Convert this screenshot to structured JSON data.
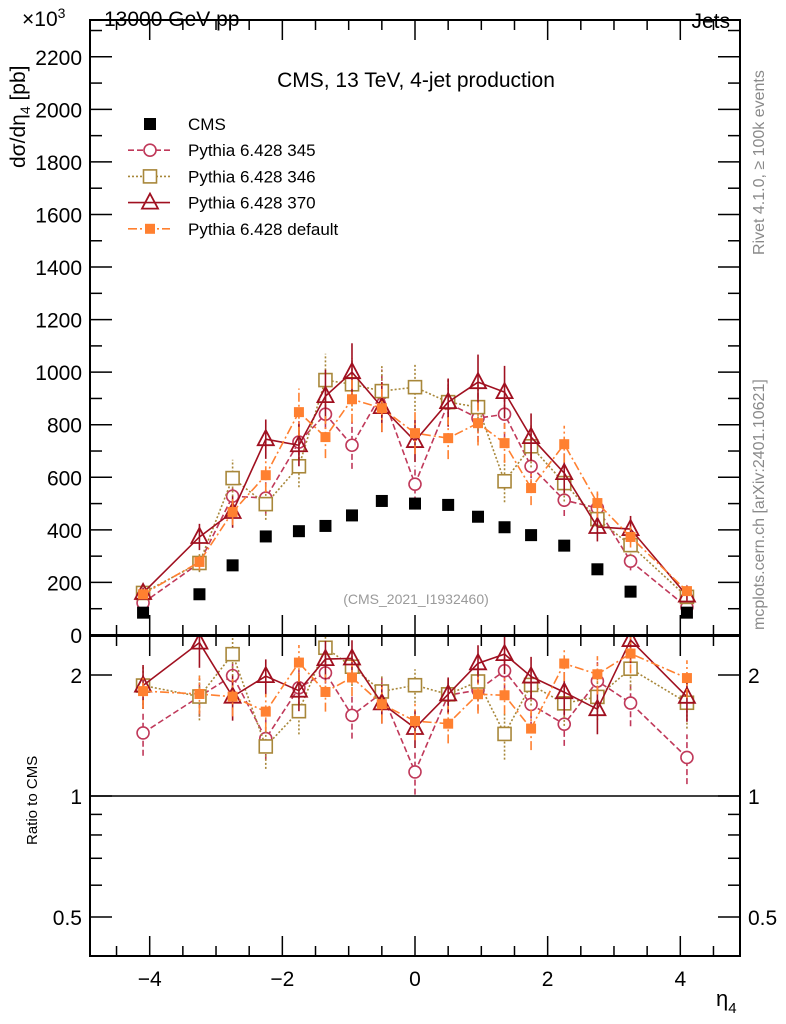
{
  "header": {
    "energy_label": "13000 GeV pp",
    "multiplier_label": "×10",
    "multiplier_exp": "3",
    "category_label": "Jets",
    "rivet_label": "Rivet 4.1.0, ≥ 100k events",
    "mcplots_label": "mcplots.cern.ch [arXiv:2401.10621]",
    "analysis_label": "(CMS_2021_I1932460)"
  },
  "chart_data": [
    {
      "type": "scatter",
      "title": "CMS, 13 TeV, 4-jet production",
      "ylabel": "dσ/dη",
      "ylabel_sub": "4",
      "ylabel_unit": " [pb]",
      "xlim": [
        -4.9,
        4.9
      ],
      "ylim": [
        0,
        2340
      ],
      "yticks": [
        0,
        200,
        400,
        600,
        800,
        1000,
        1200,
        1400,
        1600,
        1800,
        2000,
        2200
      ],
      "ytick_labels": [
        "0",
        "200",
        "400",
        "600",
        "800",
        "1000",
        "1200",
        "1400",
        "1600",
        "1800",
        "2000",
        "2200"
      ],
      "legend_position": "top-left",
      "x": [
        -4.1,
        -3.25,
        -2.75,
        -2.25,
        -1.75,
        -1.35,
        -0.95,
        -0.5,
        0,
        0.5,
        0.95,
        1.35,
        1.75,
        2.25,
        2.75,
        3.25,
        4.1
      ],
      "series": [
        {
          "name": "CMS",
          "color": "#000000",
          "marker": "filled-square",
          "line": "none",
          "values": [
            85,
            155,
            265,
            375,
            395,
            415,
            455,
            510,
            500,
            495,
            450,
            410,
            380,
            340,
            250,
            165,
            85
          ],
          "err": [
            0,
            0,
            0,
            0,
            0,
            0,
            0,
            0,
            0,
            0,
            0,
            0,
            0,
            0,
            0,
            0,
            0
          ]
        },
        {
          "name": "Pythia 6.428 345",
          "color": "#c0395a",
          "marker": "open-circle",
          "line": "dashed",
          "values": [
            122,
            274,
            528,
            521,
            734,
            840,
            722,
            920,
            574,
            882,
            825,
            840,
            642,
            513,
            483,
            281,
            106
          ],
          "err": [
            15,
            30,
            60,
            60,
            80,
            90,
            90,
            90,
            70,
            90,
            90,
            90,
            80,
            60,
            55,
            35,
            15
          ]
        },
        {
          "name": "Pythia 6.428 346",
          "color": "#a8873a",
          "marker": "open-square",
          "line": "dotted",
          "values": [
            160,
            274,
            597,
            498,
            642,
            970,
            954,
            928,
            943,
            886,
            867,
            585,
            718,
            578,
            441,
            342,
            145
          ],
          "err": [
            20,
            35,
            70,
            60,
            80,
            100,
            100,
            95,
            90,
            90,
            90,
            80,
            80,
            70,
            55,
            40,
            20
          ]
        },
        {
          "name": "Pythia 6.428 370",
          "color": "#a01020",
          "marker": "open-triangle",
          "line": "solid",
          "values": [
            160,
            373,
            468,
            745,
            722,
            909,
            1000,
            867,
            738,
            886,
            962,
            924,
            753,
            616,
            411,
            403,
            150
          ],
          "err": [
            20,
            50,
            60,
            75,
            80,
            100,
            110,
            95,
            80,
            90,
            105,
            100,
            90,
            75,
            55,
            50,
            20
          ]
        },
        {
          "name": "Pythia 6.428 default",
          "color": "#ff8030",
          "marker": "filled-square-small",
          "line": "dashdot",
          "values": [
            155,
            278,
            468,
            608,
            848,
            753,
            897,
            863,
            768,
            749,
            806,
            730,
            559,
            726,
            502,
            373,
            167
          ],
          "err": [
            15,
            30,
            50,
            65,
            90,
            80,
            90,
            90,
            80,
            80,
            85,
            75,
            65,
            70,
            55,
            40,
            18
          ]
        }
      ]
    },
    {
      "type": "scatter",
      "ylabel": "Ratio to CMS",
      "xlabel": "η",
      "xlabel_sub": "4",
      "scale": "log",
      "xlim": [
        -4.9,
        4.9
      ],
      "ylim": [
        0.4,
        2.5
      ],
      "xticks": [
        -4,
        -2,
        0,
        2,
        4
      ],
      "xtick_labels": [
        "−4",
        "−2",
        "0",
        "2",
        "4"
      ],
      "yticks": [
        0.5,
        1,
        2
      ],
      "ytick_labels": [
        "0.5",
        "1",
        "2"
      ],
      "reference_line": 1,
      "note": "ratio = model / CMS"
    }
  ]
}
